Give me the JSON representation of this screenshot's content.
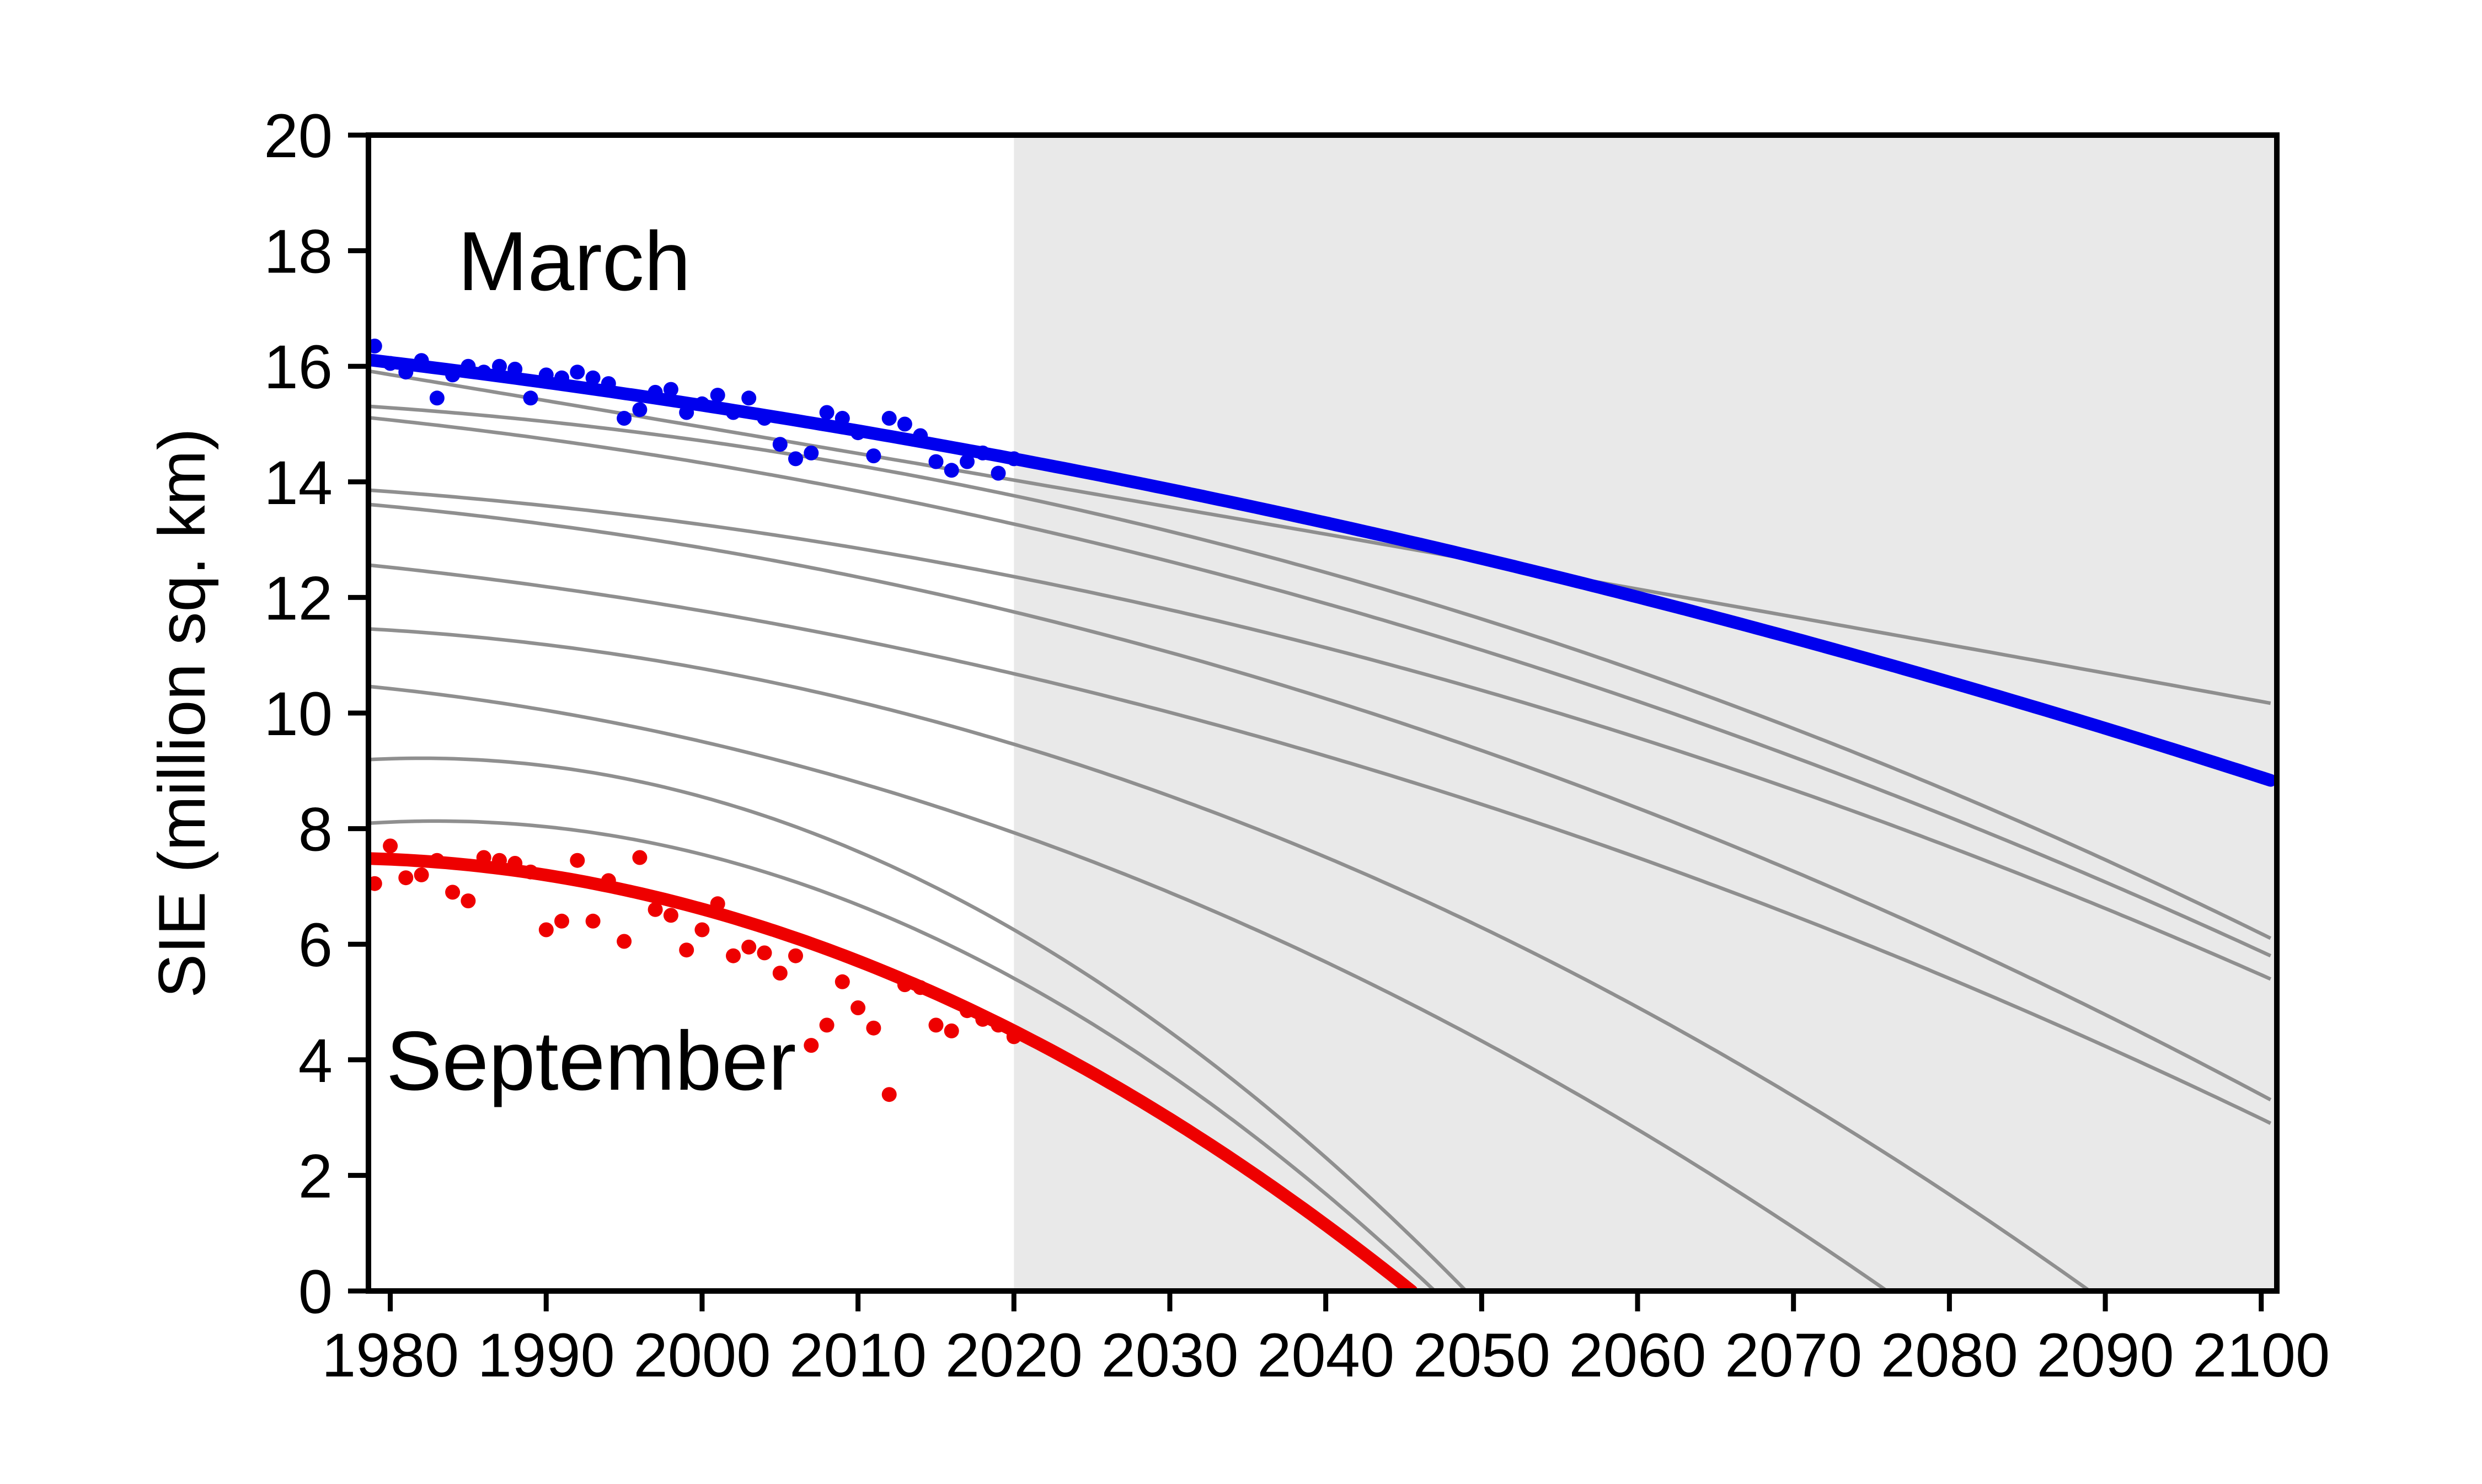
{
  "figure": {
    "background_color": "#ffffff",
    "frame_color": "#000000",
    "observed_region_color": "#ffffff",
    "projection_region": {
      "from_year": 2020,
      "color": "#e9e9e9"
    },
    "colors": {
      "march_blue": "#0000ee",
      "september_red": "#ee0000",
      "model_gray": "#8f8f8f"
    },
    "annotations": {
      "march_label": "March",
      "september_label": "September"
    }
  },
  "axes": {
    "x": {
      "range": [
        1978.6,
        2101.0
      ],
      "ticks": [
        1980,
        1990,
        2000,
        2010,
        2020,
        2030,
        2040,
        2050,
        2060,
        2070,
        2080,
        2090,
        2100
      ],
      "grid": false
    },
    "y": {
      "title": "SIE (million sq. km)",
      "range": [
        0,
        20
      ],
      "ticks": [
        0,
        2,
        4,
        6,
        8,
        10,
        12,
        14,
        16,
        18,
        20
      ],
      "grid": false
    }
  },
  "chart_data": {
    "type": "line",
    "description": "Arctic sea-ice extent (SIE): March and September observations with fitted trend curves and gray model ensemble projections; shaded band marks projection period from 2020 onward.",
    "observations": [
      {
        "name": "March observed SIE",
        "marker_color": "#0000ee",
        "marker_radius": 13.5,
        "points": [
          [
            1979,
            16.35
          ],
          [
            1980,
            16.05
          ],
          [
            1981,
            15.9
          ],
          [
            1982,
            16.1
          ],
          [
            1983,
            15.45
          ],
          [
            1984,
            15.85
          ],
          [
            1985,
            16.0
          ],
          [
            1986,
            15.9
          ],
          [
            1987,
            16.0
          ],
          [
            1988,
            15.95
          ],
          [
            1989,
            15.45
          ],
          [
            1990,
            15.85
          ],
          [
            1991,
            15.8
          ],
          [
            1992,
            15.9
          ],
          [
            1993,
            15.8
          ],
          [
            1994,
            15.7
          ],
          [
            1995,
            15.1
          ],
          [
            1996,
            15.25
          ],
          [
            1997,
            15.55
          ],
          [
            1998,
            15.6
          ],
          [
            1999,
            15.2
          ],
          [
            2000,
            15.35
          ],
          [
            2001,
            15.5
          ],
          [
            2002,
            15.2
          ],
          [
            2003,
            15.45
          ],
          [
            2004,
            15.1
          ],
          [
            2005,
            14.65
          ],
          [
            2006,
            14.4
          ],
          [
            2007,
            14.5
          ],
          [
            2008,
            15.2
          ],
          [
            2009,
            15.1
          ],
          [
            2010,
            14.85
          ],
          [
            2011,
            14.45
          ],
          [
            2012,
            15.1
          ],
          [
            2013,
            15.0
          ],
          [
            2014,
            14.8
          ],
          [
            2015,
            14.35
          ],
          [
            2016,
            14.2
          ],
          [
            2017,
            14.35
          ],
          [
            2018,
            14.5
          ],
          [
            2019,
            14.15
          ],
          [
            2020,
            14.4
          ]
        ]
      },
      {
        "name": "September observed SIE",
        "marker_color": "#ee0000",
        "marker_radius": 13.5,
        "points": [
          [
            1979,
            7.05
          ],
          [
            1980,
            7.7
          ],
          [
            1981,
            7.15
          ],
          [
            1982,
            7.2
          ],
          [
            1983,
            7.45
          ],
          [
            1984,
            6.9
          ],
          [
            1985,
            6.75
          ],
          [
            1986,
            7.5
          ],
          [
            1987,
            7.45
          ],
          [
            1988,
            7.4
          ],
          [
            1989,
            7.25
          ],
          [
            1990,
            6.25
          ],
          [
            1991,
            6.4
          ],
          [
            1992,
            7.45
          ],
          [
            1993,
            6.4
          ],
          [
            1994,
            7.1
          ],
          [
            1995,
            6.05
          ],
          [
            1996,
            7.5
          ],
          [
            1997,
            6.6
          ],
          [
            1998,
            6.5
          ],
          [
            1999,
            5.9
          ],
          [
            2000,
            6.25
          ],
          [
            2001,
            6.7
          ],
          [
            2002,
            5.8
          ],
          [
            2003,
            5.95
          ],
          [
            2004,
            5.85
          ],
          [
            2005,
            5.5
          ],
          [
            2006,
            5.8
          ],
          [
            2007,
            4.25
          ],
          [
            2008,
            4.6
          ],
          [
            2009,
            5.35
          ],
          [
            2010,
            4.9
          ],
          [
            2011,
            4.55
          ],
          [
            2012,
            3.4
          ],
          [
            2013,
            5.3
          ],
          [
            2014,
            5.25
          ],
          [
            2015,
            4.6
          ],
          [
            2016,
            4.5
          ],
          [
            2017,
            4.85
          ],
          [
            2018,
            4.7
          ],
          [
            2019,
            4.6
          ],
          [
            2020,
            4.4
          ]
        ]
      }
    ],
    "fitted_curves": [
      {
        "name": "March trend curve",
        "color": "#0000ee",
        "width": 23,
        "anchors": [
          [
            1979,
            16.1
          ],
          [
            2020,
            14.4
          ],
          [
            2101,
            8.8
          ]
        ]
      },
      {
        "name": "September trend curve",
        "color": "#ee0000",
        "width": 23,
        "anchors": [
          [
            1979,
            7.48
          ],
          [
            2020,
            4.5
          ],
          [
            2045.5,
            0
          ]
        ]
      }
    ],
    "model_runs": {
      "name": "Model ensemble projections",
      "color": "#8f8f8f",
      "width": 6.5,
      "curves": [
        {
          "anchors": [
            [
              1979,
              15.9
            ],
            [
              2020,
              14.03
            ],
            [
              2101,
              10.15
            ]
          ]
        },
        {
          "anchors": [
            [
              1979,
              15.3
            ],
            [
              2020,
              13.76
            ],
            [
              2101,
              6.05
            ]
          ]
        },
        {
          "anchors": [
            [
              1979,
              15.1
            ],
            [
              2020,
              13.27
            ],
            [
              2101,
              5.75
            ]
          ]
        },
        {
          "anchors": [
            [
              1979,
              13.85
            ],
            [
              2020,
              12.36
            ],
            [
              2101,
              5.35
            ]
          ]
        },
        {
          "anchors": [
            [
              1979,
              13.6
            ],
            [
              2020,
              11.75
            ],
            [
              2101,
              3.25
            ]
          ]
        },
        {
          "anchors": [
            [
              1979,
              12.55
            ],
            [
              2020,
              10.68
            ],
            [
              2101,
              2.85
            ]
          ]
        },
        {
          "anchors": [
            [
              1979,
              11.45
            ],
            [
              2020,
              9.46
            ],
            [
              2089,
              0
            ]
          ]
        },
        {
          "anchors": [
            [
              1979,
              10.45
            ],
            [
              2020,
              7.93
            ],
            [
              2076,
              0
            ]
          ]
        },
        {
          "anchors": [
            [
              1979,
              9.2
            ],
            [
              2020,
              6.25
            ],
            [
              2049,
              0
            ]
          ]
        },
        {
          "anchors": [
            [
              1979,
              8.1
            ],
            [
              2020,
              5.41
            ],
            [
              2047,
              0
            ]
          ]
        }
      ]
    }
  }
}
